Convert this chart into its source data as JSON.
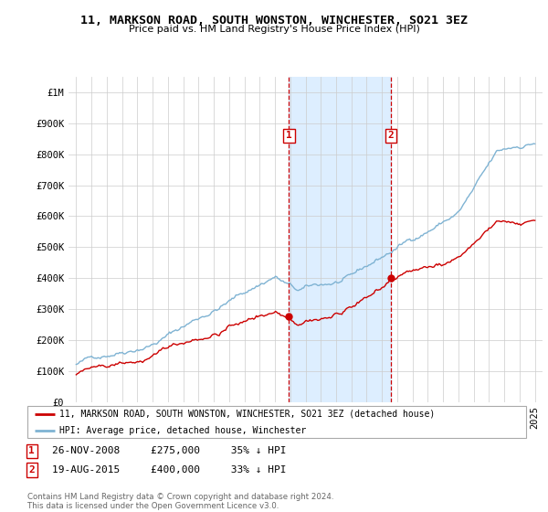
{
  "title": "11, MARKSON ROAD, SOUTH WONSTON, WINCHESTER, SO21 3EZ",
  "subtitle": "Price paid vs. HM Land Registry's House Price Index (HPI)",
  "sale1_date": "26-NOV-2008",
  "sale1_price": 275000,
  "sale1_pct": "35% ↓ HPI",
  "sale1_label": "1",
  "sale2_date": "19-AUG-2015",
  "sale2_price": 400000,
  "sale2_pct": "33% ↓ HPI",
  "sale2_label": "2",
  "legend_property": "11, MARKSON ROAD, SOUTH WONSTON, WINCHESTER, SO21 3EZ (detached house)",
  "legend_hpi": "HPI: Average price, detached house, Winchester",
  "footnote": "Contains HM Land Registry data © Crown copyright and database right 2024.\nThis data is licensed under the Open Government Licence v3.0.",
  "property_color": "#cc0000",
  "hpi_color": "#7fb3d3",
  "shade_color": "#ddeeff",
  "vline_color": "#cc0000",
  "ylim_max": 1050000,
  "ylim_min": 0,
  "xlim_min": 1994.5,
  "xlim_max": 2025.5
}
